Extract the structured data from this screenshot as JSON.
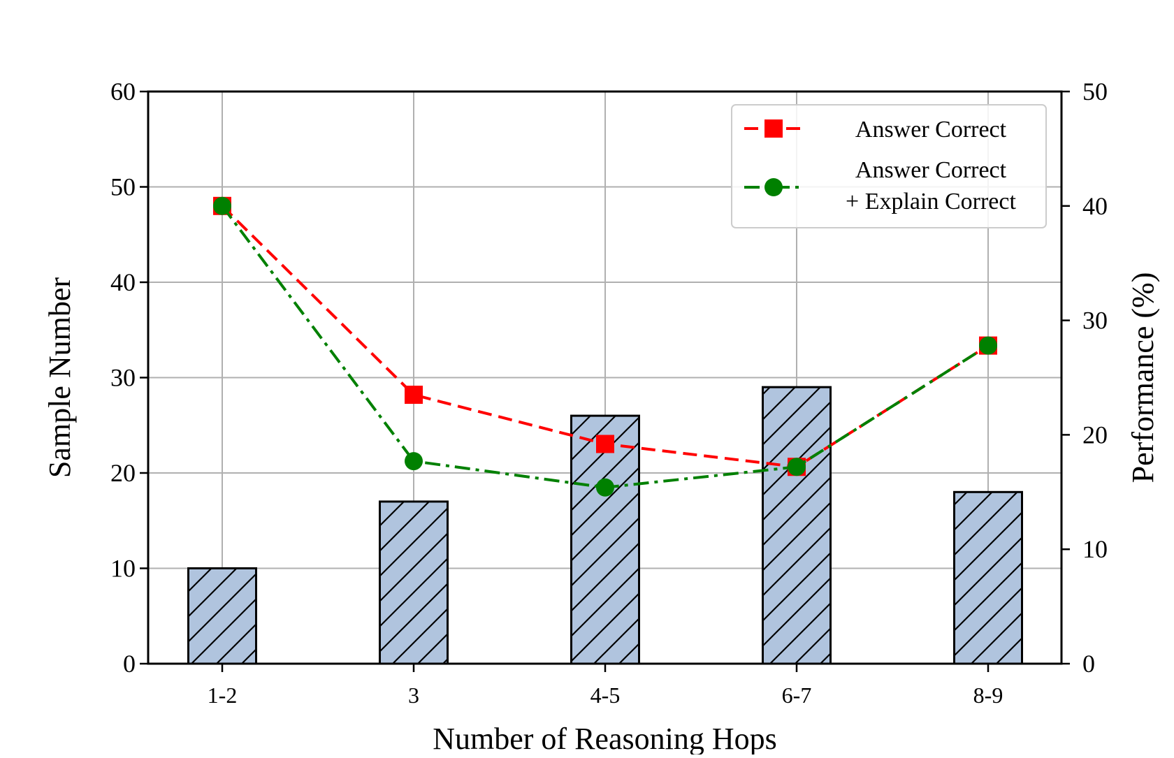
{
  "chart_data": {
    "type": "bar",
    "categories": [
      "1-2",
      "3",
      "4-5",
      "6-7",
      "8-9"
    ],
    "bars": {
      "axis": "left",
      "values": [
        10,
        17,
        26,
        29,
        18
      ],
      "color": "#b0c4de",
      "hatch": "diagonal"
    },
    "series": [
      {
        "name": "Answer Correct",
        "axis": "right",
        "type": "line",
        "values": [
          40.0,
          23.5,
          19.2,
          17.2,
          27.8
        ],
        "color": "#ff0000",
        "marker": "square",
        "line_style": "dashed"
      },
      {
        "name": "Answer Correct\n+ Explain Correct",
        "axis": "right",
        "type": "line",
        "values": [
          40.0,
          17.7,
          15.4,
          17.2,
          27.8
        ],
        "color": "#008000",
        "marker": "circle",
        "line_style": "dash-dot"
      }
    ],
    "xlabel": "Number of Reasoning Hops",
    "ylabel": "Sample Number",
    "y2label": "Performance (%)",
    "ylim": [
      0,
      60
    ],
    "y2lim": [
      0,
      50
    ],
    "yticks": [
      0,
      10,
      20,
      30,
      40,
      50,
      60
    ],
    "y2ticks": [
      0,
      10,
      20,
      30,
      40,
      50
    ],
    "grid": true,
    "legend": {
      "position": "top-right",
      "entries": [
        "Answer Correct",
        "Answer Correct",
        "+ Explain Correct"
      ]
    }
  }
}
